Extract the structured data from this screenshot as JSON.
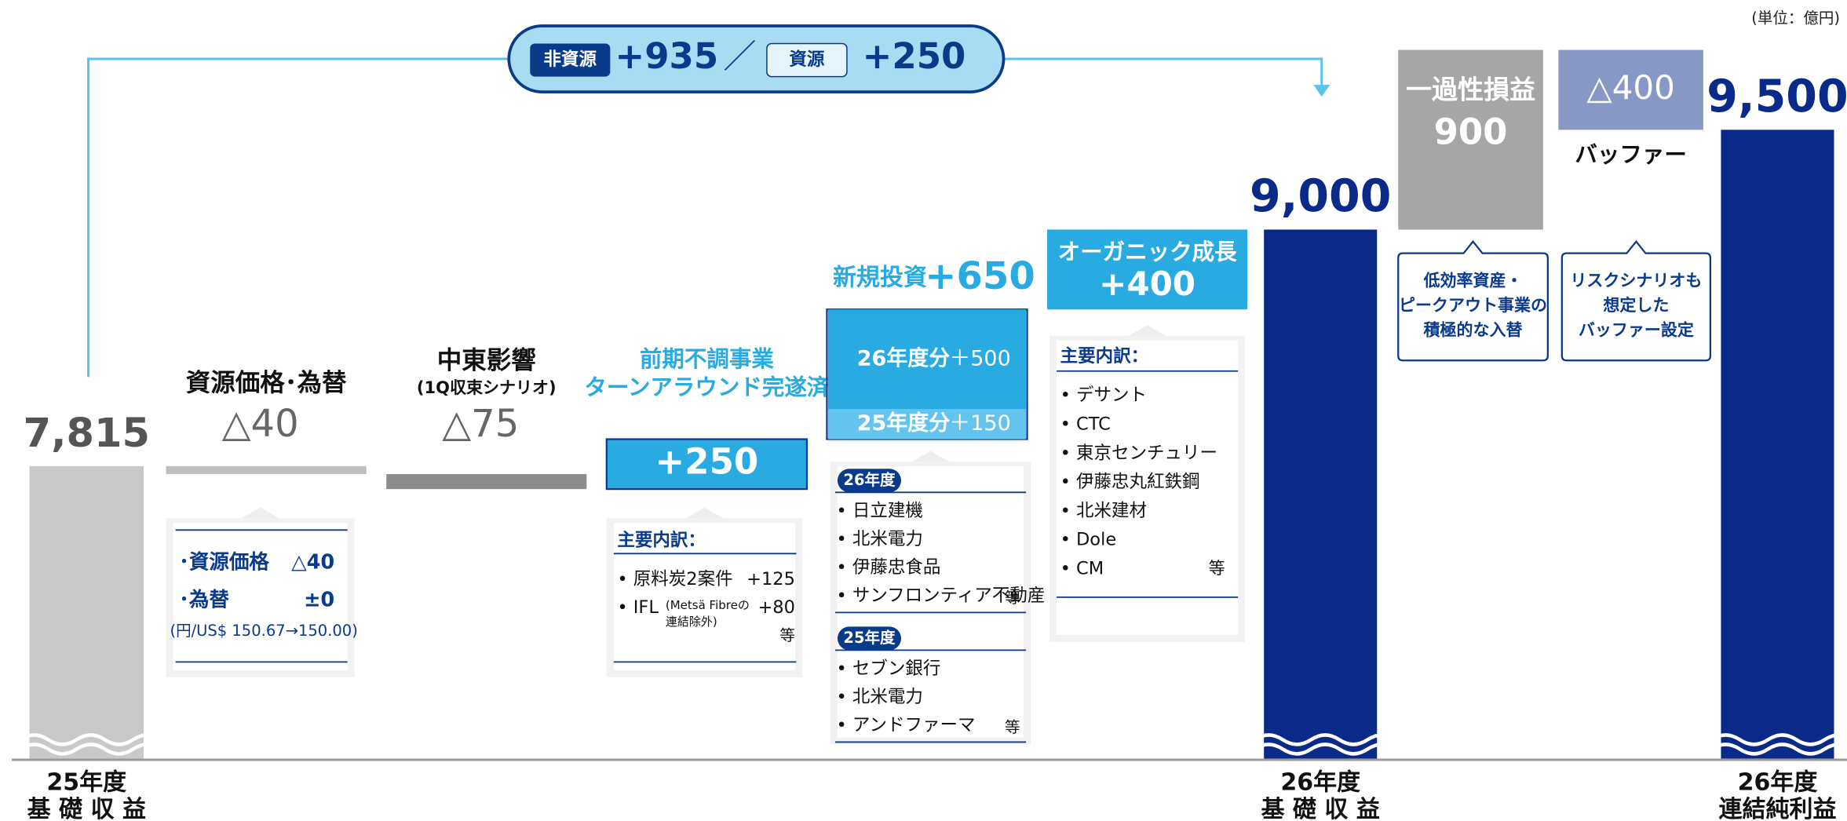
{
  "unit": "(単位：億円)",
  "bracket": {
    "tag1": "非資源",
    "value1": "+935",
    "separator": "／",
    "tag2": "資源",
    "value2": "+250"
  },
  "chart_data": {
    "type": "waterfall",
    "categories": [
      "25年度",
      "資源価格･為替",
      "中東影響",
      "前期不調事業",
      "新規投資",
      "オーガニック成長",
      "26年度",
      "一過性損益",
      "バッファー",
      "26年度"
    ],
    "category_sublabels": [
      "基 礎 収 益",
      null,
      "(1Q収束シナリオ)",
      "ターンアラウンド完遂済",
      null,
      null,
      "基 礎 収 益",
      null,
      null,
      "連結純利益"
    ],
    "values": [
      7815,
      -40,
      -75,
      250,
      650,
      400,
      9000,
      900,
      -400,
      9500
    ],
    "value_labels": [
      "7,815",
      "△40",
      "△75",
      "+250",
      "+650",
      "+400",
      "9,000",
      "900",
      "△400",
      "9,500"
    ],
    "measures": [
      "total",
      "delta",
      "delta",
      "delta",
      "delta",
      "delta",
      "total",
      "delta",
      "delta",
      "total"
    ],
    "colors": [
      "#c9c9c9",
      "#bfbfbf",
      "#8c8c8c",
      "#29abe2",
      "#29abe2",
      "#29abe2",
      "#0a2a8a",
      "#a6a6a6",
      "#8898c6",
      "#0a2a8a"
    ],
    "segments": [
      null,
      null,
      null,
      null,
      {
        "labels": [
          "26年度分",
          "25年度分"
        ],
        "values": [
          500,
          150
        ],
        "value_labels": [
          "＋500",
          "＋150"
        ],
        "colors": [
          "#29abe2",
          "#63c5ee"
        ]
      },
      null,
      null,
      null,
      null,
      null
    ],
    "ylim": [
      6350,
      10150
    ]
  },
  "breakdowns": [
    {
      "items": [
        {
          "label": "･資源価格",
          "value": "△40"
        },
        {
          "label": "･為替",
          "value": "±0"
        }
      ],
      "note": "(円/US$ 150.67→150.00)"
    },
    {
      "heading": "主要内訳：",
      "items": [
        {
          "label": "• 原料炭2案件",
          "value": "+125"
        },
        {
          "label": "• IFL",
          "detail": [
            "(Metsä Fibreの",
            "連結除外)"
          ],
          "value": "+80"
        }
      ],
      "etc": "等"
    },
    {
      "groups": [
        {
          "tag": "26年度",
          "items": [
            "• 日立建機",
            "• 北米電力",
            "• 伊藤忠食品",
            "• サンフロンティア不動産"
          ],
          "etc": "等"
        },
        {
          "tag": "25年度",
          "items": [
            "• セブン銀行",
            "• 北米電力",
            "• アンドファーマ"
          ],
          "etc": "等"
        }
      ]
    },
    {
      "heading": "主要内訳：",
      "items": [
        "• デサント",
        "• CTC",
        "• 東京センチュリー",
        "• 伊藤忠丸紅鉄鋼",
        "• 北米建材",
        "• Dole",
        "• CM"
      ],
      "etc": "等"
    }
  ],
  "callouts": [
    [
      "低効率資産・",
      "ピークアウト事業の",
      "積極的な入替"
    ],
    [
      "リスクシナリオも",
      "想定した",
      "バッファー設定"
    ]
  ]
}
